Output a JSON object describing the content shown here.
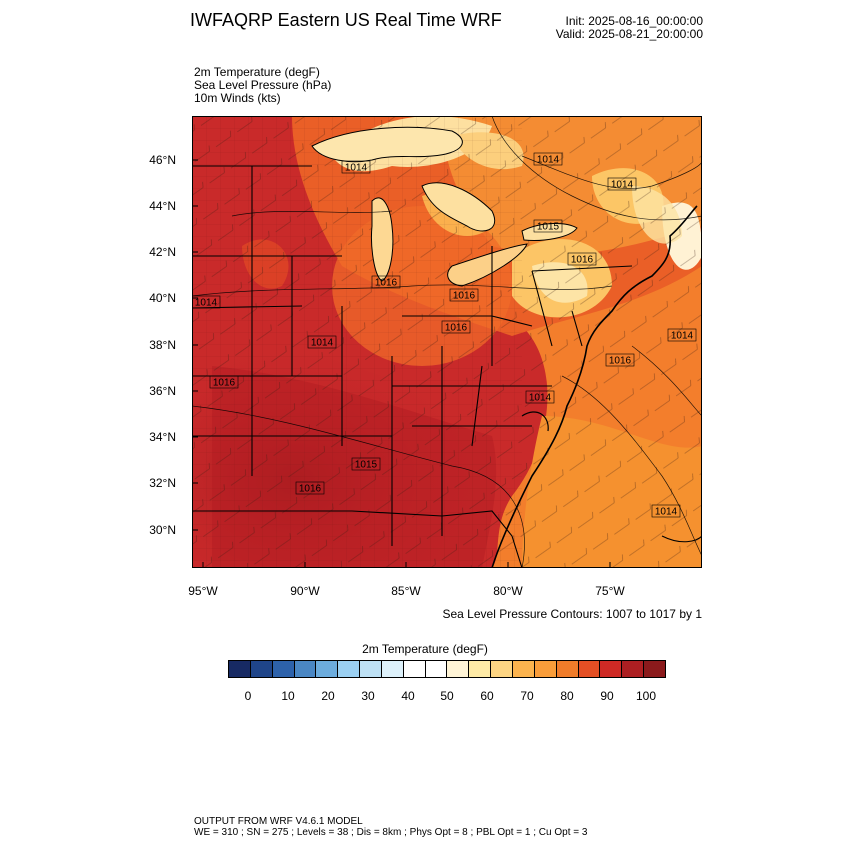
{
  "header": {
    "title": "IWFAQRP Eastern US Real Time WRF",
    "init": "Init: 2025-08-16_00:00:00",
    "valid": "Valid: 2025-08-21_20:00:00"
  },
  "fields": [
    "2m Temperature   (degF)",
    "Sea Level Pressure   (hPa)",
    "10m Winds   (kts)"
  ],
  "map": {
    "lat_labels": [
      "46°N",
      "44°N",
      "42°N",
      "40°N",
      "38°N",
      "36°N",
      "34°N",
      "32°N",
      "30°N"
    ],
    "lon_labels": [
      "95°W",
      "90°W",
      "85°W",
      "80°W",
      "75°W"
    ],
    "isobar_labels": [
      "1014",
      "1014",
      "1015",
      "1016",
      "1014",
      "1016",
      "1016",
      "1014",
      "1014",
      "1016",
      "1016",
      "1014",
      "1016",
      "1014",
      "1015",
      "1016",
      "1014"
    ],
    "contour_note": "Sea Level Pressure Contours: 1007 to 1017 by 1"
  },
  "colorbar": {
    "title": "2m Temperature  (degF)",
    "colors": [
      "#172a63",
      "#1f4589",
      "#2d62ab",
      "#4a87c4",
      "#6cacdd",
      "#9bd0f2",
      "#bee1f5",
      "#ddf1fb",
      "#ffffff",
      "#ffffff",
      "#fff4d6",
      "#feeaa6",
      "#fdd583",
      "#fbb34e",
      "#f99d3a",
      "#f07c2a",
      "#e44f24",
      "#cf2a25",
      "#ad1f22",
      "#8b1a1c"
    ],
    "labels": [
      "0",
      "10",
      "20",
      "30",
      "40",
      "50",
      "60",
      "70",
      "80",
      "90",
      "100"
    ]
  },
  "footer": {
    "line1": "OUTPUT FROM WRF V4.6.1 MODEL",
    "line2": "WE = 310 ; SN = 275 ; Levels = 38 ; Dis = 8km ; Phys Opt = 8 ; PBL Opt = 1 ; Cu Opt = 3"
  }
}
